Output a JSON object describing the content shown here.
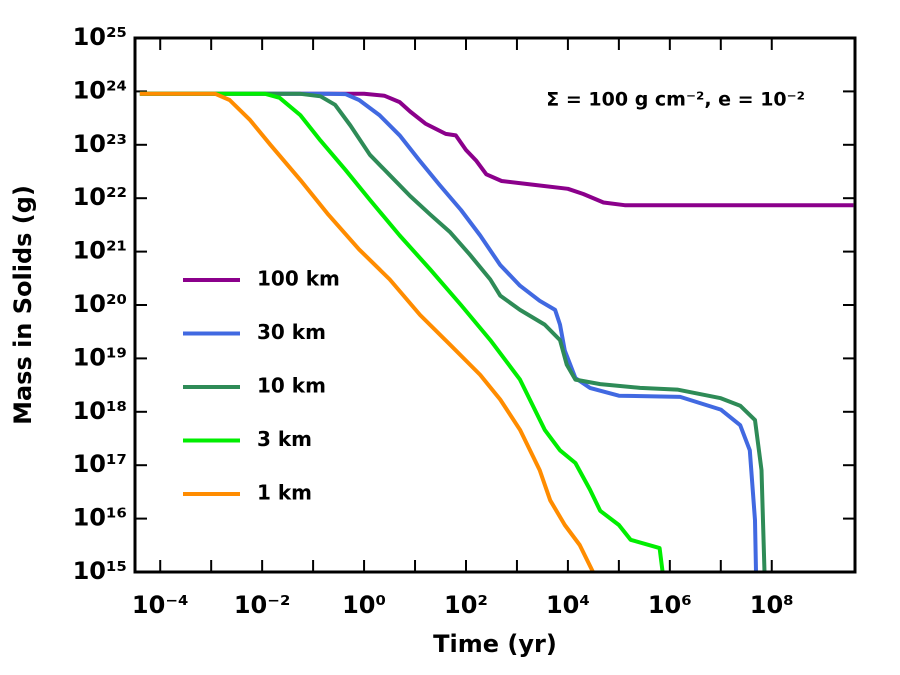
{
  "chart_data": {
    "type": "line",
    "xlabel": "Time (yr)",
    "ylabel": "Mass in Solids (g)",
    "annotation": "Σ = 100 g cm⁻², e = 10⁻²",
    "xscale": "log",
    "yscale": "log",
    "xlim": [
      3.2e-05,
      4300000000.0
    ],
    "ylim": [
      1000000000000000.0,
      1e+25
    ],
    "xticks": [
      {
        "value": 0.0001,
        "label": "10⁻⁴"
      },
      {
        "value": 0.01,
        "label": "10⁻²"
      },
      {
        "value": 1,
        "label": "10⁰"
      },
      {
        "value": 100,
        "label": "10²"
      },
      {
        "value": 10000.0,
        "label": "10⁴"
      },
      {
        "value": 1000000.0,
        "label": "10⁶"
      },
      {
        "value": 100000000.0,
        "label": "10⁸"
      }
    ],
    "yticks": [
      {
        "value": 1000000000000000.0,
        "label": "10¹⁵"
      },
      {
        "value": 1e+16,
        "label": "10¹⁶"
      },
      {
        "value": 1e+17,
        "label": "10¹⁷"
      },
      {
        "value": 1e+18,
        "label": "10¹⁸"
      },
      {
        "value": 1e+19,
        "label": "10¹⁹"
      },
      {
        "value": 1e+20,
        "label": "10²⁰"
      },
      {
        "value": 1e+21,
        "label": "10²¹"
      },
      {
        "value": 1e+22,
        "label": "10²²"
      },
      {
        "value": 1e+23,
        "label": "10²³"
      },
      {
        "value": 1e+24,
        "label": "10²⁴"
      },
      {
        "value": 1e+25,
        "label": "10²⁵"
      }
    ],
    "legend": "center left",
    "series": [
      {
        "name": "100 km",
        "color": "#8b008b",
        "x": [
          4e-05,
          1,
          2.5,
          5,
          8,
          16,
          40,
          63,
          100,
          160,
          250,
          500,
          2000,
          10000.0,
          20000.0,
          50000.0,
          130000.0,
          4000000000.0
        ],
        "values": [
          9e+23,
          9e+23,
          8.3e+23,
          6.3e+23,
          4.2e+23,
          2.5e+23,
          1.6e+23,
          1.5e+23,
          8e+22,
          5e+22,
          2.8e+22,
          2.1e+22,
          1.8e+22,
          1.5e+22,
          1.2e+22,
          8.3e+21,
          7.4e+21,
          7.4e+21
        ]
      },
      {
        "name": "30 km",
        "color": "#4169e1",
        "x": [
          4e-05,
          0.2,
          0.43,
          0.8,
          2,
          5,
          12,
          30,
          80,
          190,
          470,
          1150,
          2800,
          5600,
          7000,
          8700,
          14000.0,
          27000.0,
          100000.0,
          1600000.0,
          10000000.0,
          24000000.0,
          37000000.0,
          47000000.0,
          49000000.0
        ],
        "values": [
          9e+23,
          9e+23,
          8.9e+23,
          6.9e+23,
          3.6e+23,
          1.5e+23,
          5.2e+22,
          1.8e+22,
          6e+21,
          2e+21,
          5.6e+20,
          2.3e+20,
          1.2e+20,
          8.1e+19,
          4.3e+19,
          1.4e+19,
          4.3e+18,
          2.8e+18,
          2e+18,
          1.9e+18,
          1.1e+18,
          5.6e+17,
          1.9e+17,
          9300000000000000.0,
          1000000000000000.0
        ]
      },
      {
        "name": "10 km",
        "color": "#2e8b57",
        "x": [
          4e-05,
          0.056,
          0.14,
          0.27,
          0.54,
          1.3,
          3.2,
          8,
          20,
          49,
          120,
          300,
          470,
          1150,
          3500,
          7000,
          9500,
          14000.0,
          43000.0,
          260000.0,
          1400000.0,
          10000000.0,
          24000000.0,
          47000000.0,
          63000000.0,
          72000000.0
        ],
        "values": [
          9e+23,
          9e+23,
          8.1e+23,
          5.6e+23,
          2.3e+23,
          6.5e+22,
          2.7e+22,
          1.1e+22,
          4.9e+21,
          2.3e+21,
          8.7e+20,
          3e+20,
          1.5e+20,
          8.1e+19,
          4.3e+19,
          2.2e+19,
          7.6e+18,
          4e+18,
          3.3e+18,
          2.8e+18,
          2.6e+18,
          1.8e+18,
          1.3e+18,
          7e+17,
          8.1e+16,
          1000000000000000.0
        ]
      },
      {
        "name": "3 km",
        "color": "#00ee00",
        "x": [
          4e-05,
          0.0115,
          0.022,
          0.056,
          0.14,
          0.43,
          1.3,
          5,
          20,
          80,
          300,
          1150,
          3500,
          7000,
          14000.0,
          27000.0,
          43000.0,
          100000.0,
          170000.0,
          630000.0,
          720000.0
        ],
        "values": [
          9e+23,
          9e+23,
          7.6e+23,
          3.6e+23,
          1.2e+23,
          3.4e+22,
          9.3e+21,
          2e+21,
          4.6e+20,
          1e+20,
          2.2e+19,
          4e+18,
          4.6e+17,
          1.9e+17,
          1.1e+17,
          3.5e+16,
          1.4e+16,
          7600000000000000.0,
          4000000000000000.0,
          2800000000000000.0,
          1000000000000000.0
        ]
      },
      {
        "name": "1 km",
        "color": "#ff8c00",
        "x": [
          4e-05,
          0.0012,
          0.0023,
          0.0058,
          0.0145,
          0.056,
          0.2,
          0.8,
          3.2,
          12.6,
          49,
          190,
          470,
          1150,
          2800,
          4500,
          8700,
          17000.0,
          31000.0
        ],
        "values": [
          9e+23,
          9e+23,
          6.9e+23,
          2.9e+23,
          1e+23,
          2.2e+22,
          4.9e+21,
          1.1e+21,
          3e+20,
          6.5e+19,
          1.8e+19,
          4.9e+18,
          1.7e+18,
          4.6e+17,
          8.1e+16,
          2.2e+16,
          7600000000000000.0,
          3200000000000000.0,
          1000000000000000.0
        ]
      }
    ]
  }
}
